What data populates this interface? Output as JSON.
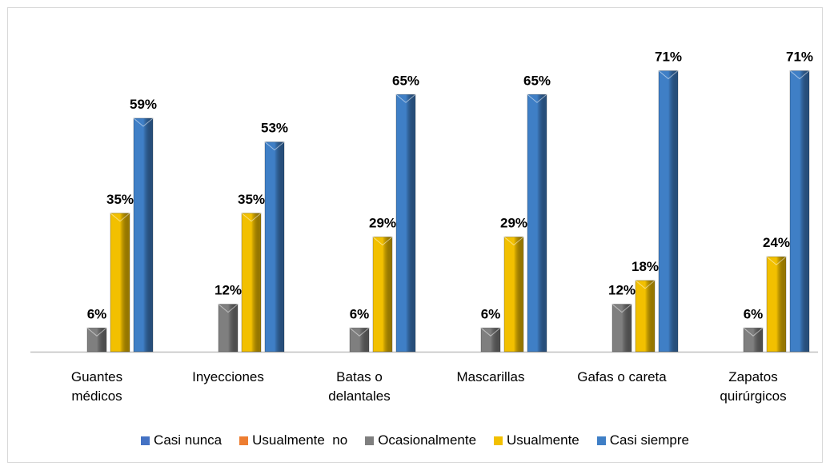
{
  "chart_data": {
    "type": "bar",
    "categories": [
      "Guantes\nmédicos",
      "Inyecciones",
      "Batas o\ndelantales",
      "Mascarillas",
      "Gafas o careta",
      "Zapatos\nquirúrgicos"
    ],
    "series": [
      {
        "name": "Casi nunca",
        "color": "#4472c4",
        "values": [
          null,
          null,
          null,
          null,
          null,
          null
        ]
      },
      {
        "name": "Usualmente  no",
        "color": "#ed7d31",
        "values": [
          null,
          null,
          null,
          null,
          null,
          null
        ]
      },
      {
        "name": "Ocasionalmente",
        "color": "#7f7f7f",
        "values": [
          6,
          12,
          6,
          6,
          12,
          6
        ],
        "value_labels": [
          "6%",
          "12%",
          "6%",
          "6%",
          "12%",
          "6%"
        ]
      },
      {
        "name": "Usualmente",
        "color": "#f2c000",
        "values": [
          35,
          35,
          29,
          29,
          18,
          24
        ],
        "value_labels": [
          "35%",
          "35%",
          "29%",
          "29%",
          "18%",
          "24%"
        ]
      },
      {
        "name": "Casi siempre",
        "color": "#3f7fc6",
        "values": [
          59,
          53,
          65,
          65,
          71,
          71
        ],
        "value_labels": [
          "59%",
          "53%",
          "65%",
          "65%",
          "71%",
          "71%"
        ]
      }
    ],
    "legend": "bottom"
  }
}
